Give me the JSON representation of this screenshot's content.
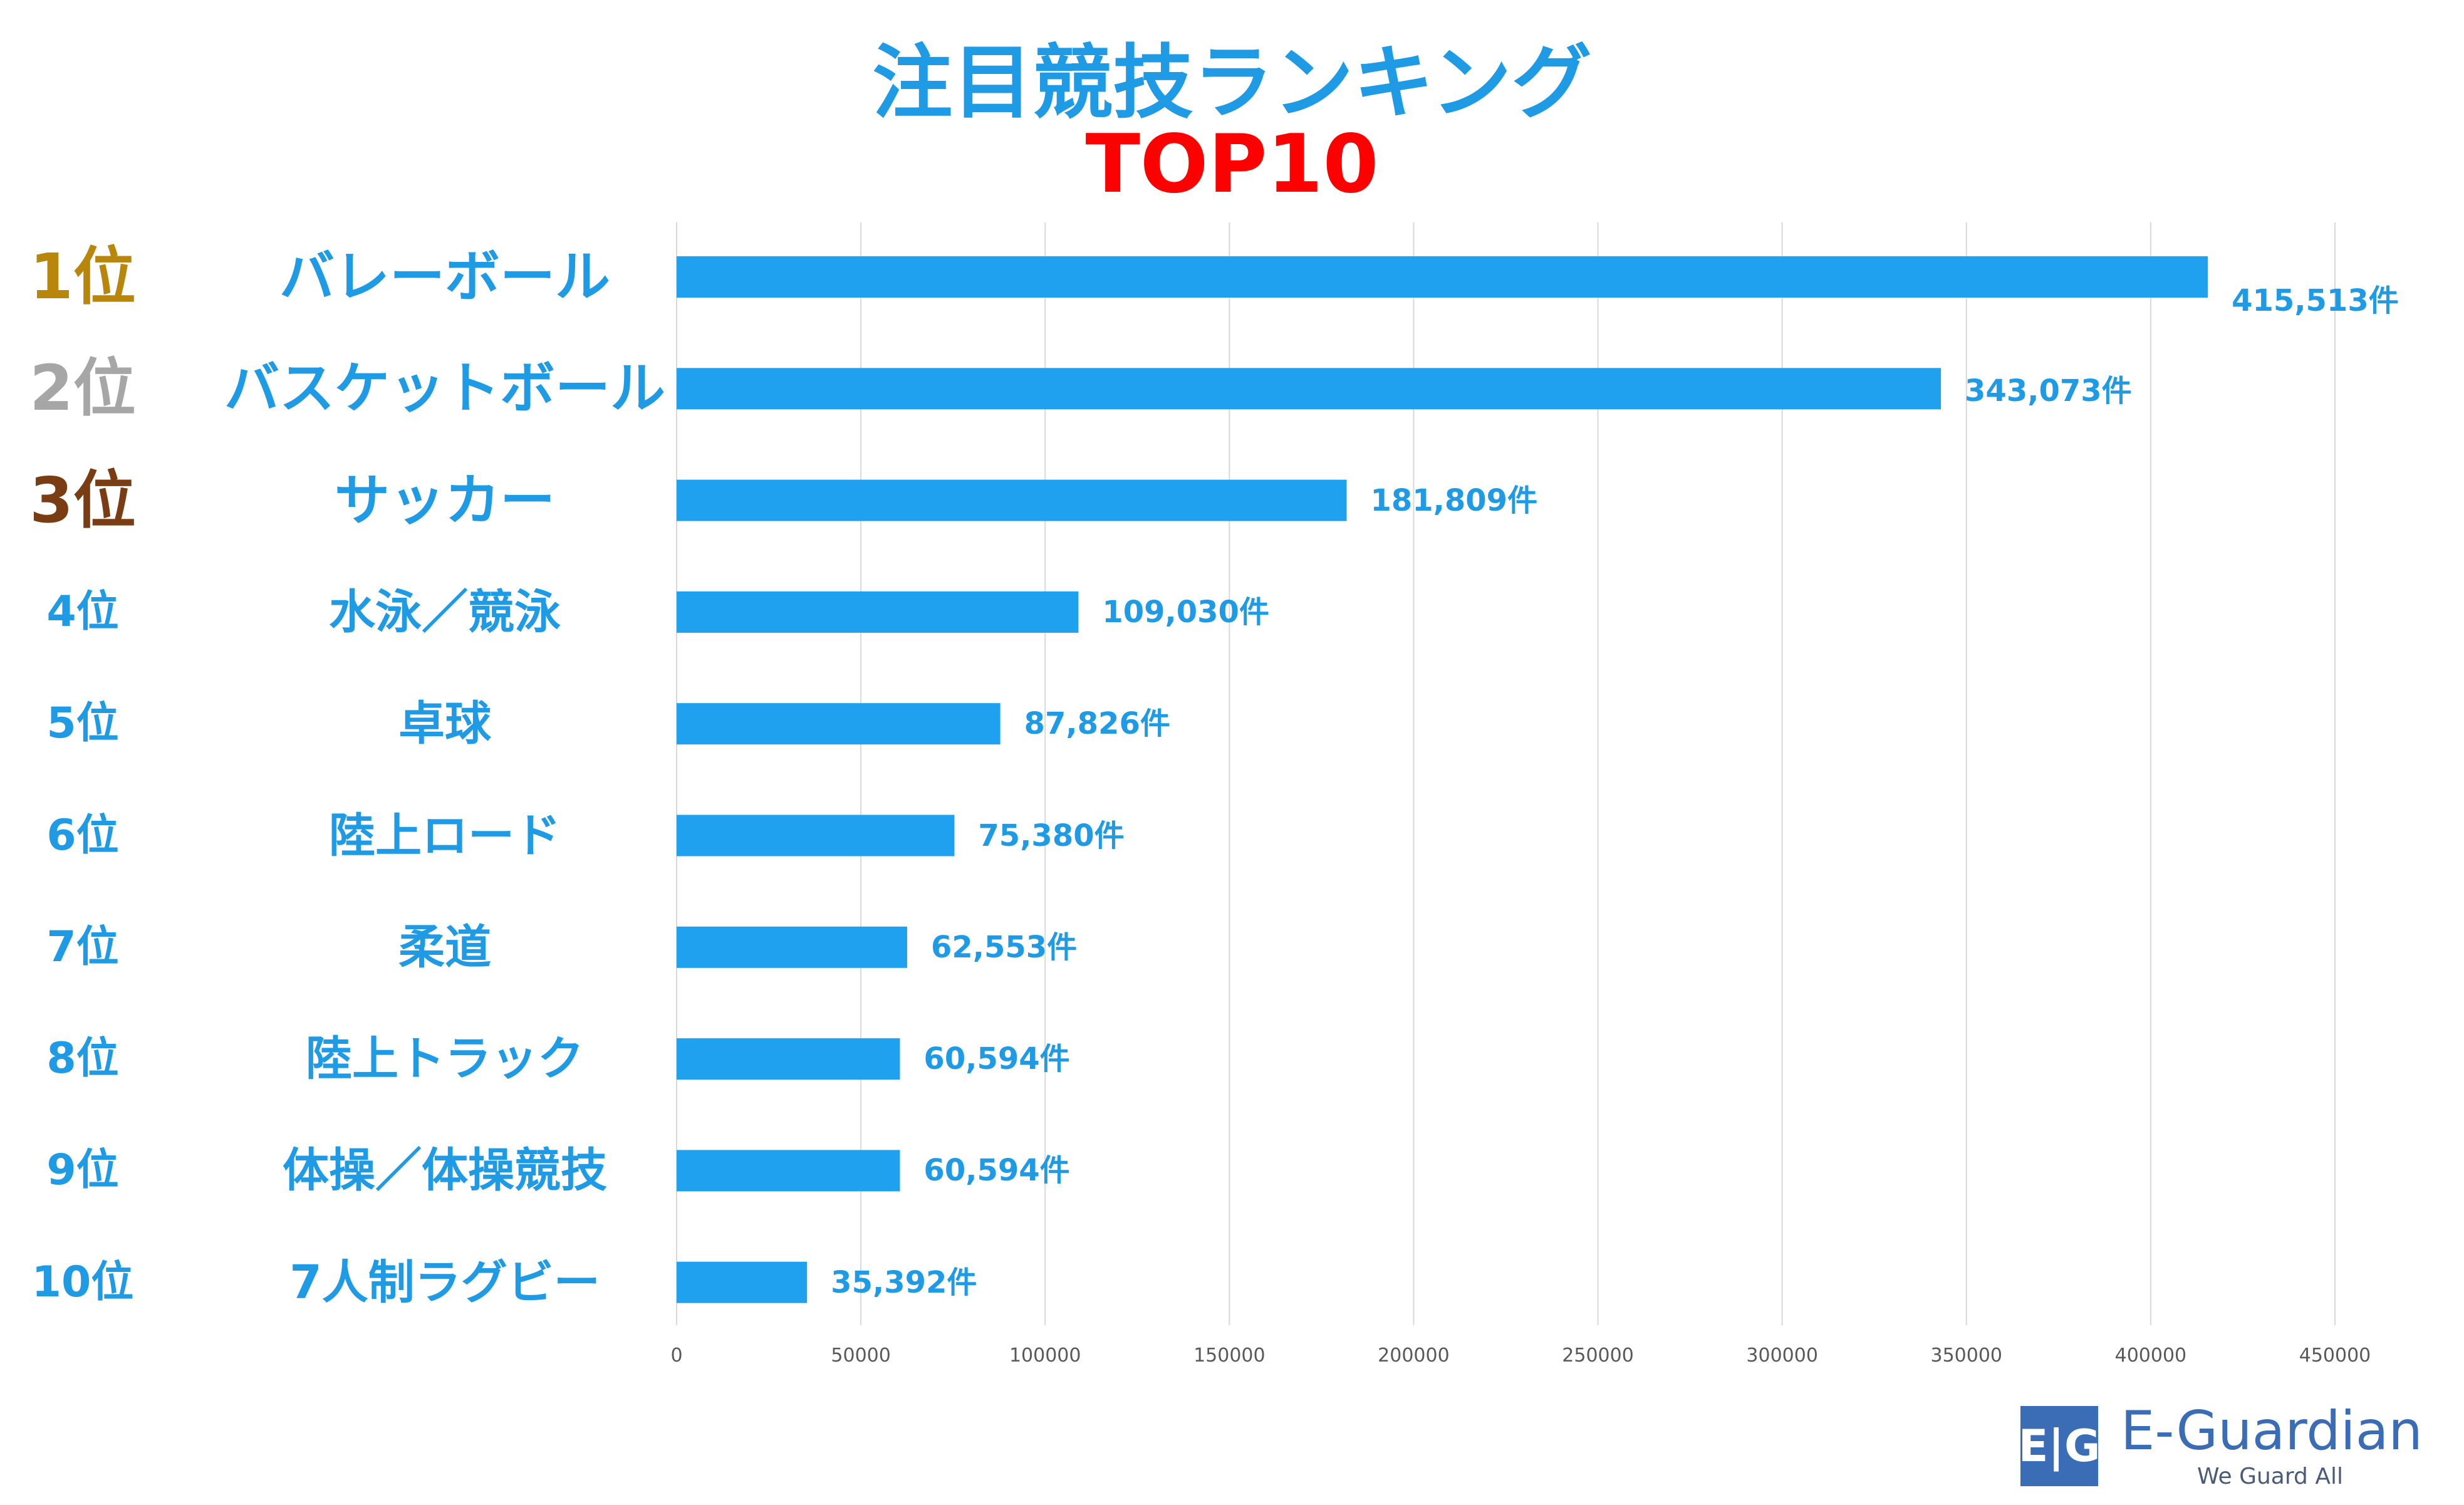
{
  "colors": {
    "bar": "#1FA1F0",
    "title": "#1F9BE6",
    "subtitle": "#FF0000",
    "rank_default": "#1F9BE6",
    "rank_gold": "#B8860B",
    "rank_silver": "#A6A6A6",
    "rank_bronze": "#7A3C12",
    "grid": "#D9D9D9",
    "tick": "#595959",
    "logo": "#3A6DB5",
    "tagline": "#4A5A7A"
  },
  "chart_data": {
    "type": "bar",
    "orientation": "horizontal",
    "title": "注目競技ランキング",
    "subtitle": "TOP10",
    "xlim": [
      0,
      450000
    ],
    "xticks": [
      "0",
      "50000",
      "100000",
      "150000",
      "200000",
      "250000",
      "300000",
      "350000",
      "400000",
      "450000"
    ],
    "grid": true,
    "rows": [
      {
        "rank": "1位",
        "category": "バレーボール",
        "value": 415513,
        "label": "415,513件",
        "rank_color": "rank_gold"
      },
      {
        "rank": "2位",
        "category": "バスケットボール",
        "value": 343073,
        "label": "343,073件",
        "rank_color": "rank_silver"
      },
      {
        "rank": "3位",
        "category": "サッカー",
        "value": 181809,
        "label": "181,809件",
        "rank_color": "rank_bronze"
      },
      {
        "rank": "4位",
        "category": "水泳／競泳",
        "value": 109030,
        "label": "109,030件",
        "rank_color": "rank_default"
      },
      {
        "rank": "5位",
        "category": "卓球",
        "value": 87826,
        "label": "87,826件",
        "rank_color": "rank_default"
      },
      {
        "rank": "6位",
        "category": "陸上ロード",
        "value": 75380,
        "label": "75,380件",
        "rank_color": "rank_default"
      },
      {
        "rank": "7位",
        "category": "柔道",
        "value": 62553,
        "label": "62,553件",
        "rank_color": "rank_default"
      },
      {
        "rank": "8位",
        "category": "陸上トラック",
        "value": 60594,
        "label": "60,594件",
        "rank_color": "rank_default"
      },
      {
        "rank": "9位",
        "category": "体操／体操競技",
        "value": 60594,
        "label": "60,594件",
        "rank_color": "rank_default"
      },
      {
        "rank": "10位",
        "category": "7人制ラグビー",
        "value": 35392,
        "label": "35,392件",
        "rank_color": "rank_default"
      }
    ]
  },
  "logo": {
    "mark": "E|G",
    "name": "E-Guardian",
    "tagline": "We Guard All"
  }
}
